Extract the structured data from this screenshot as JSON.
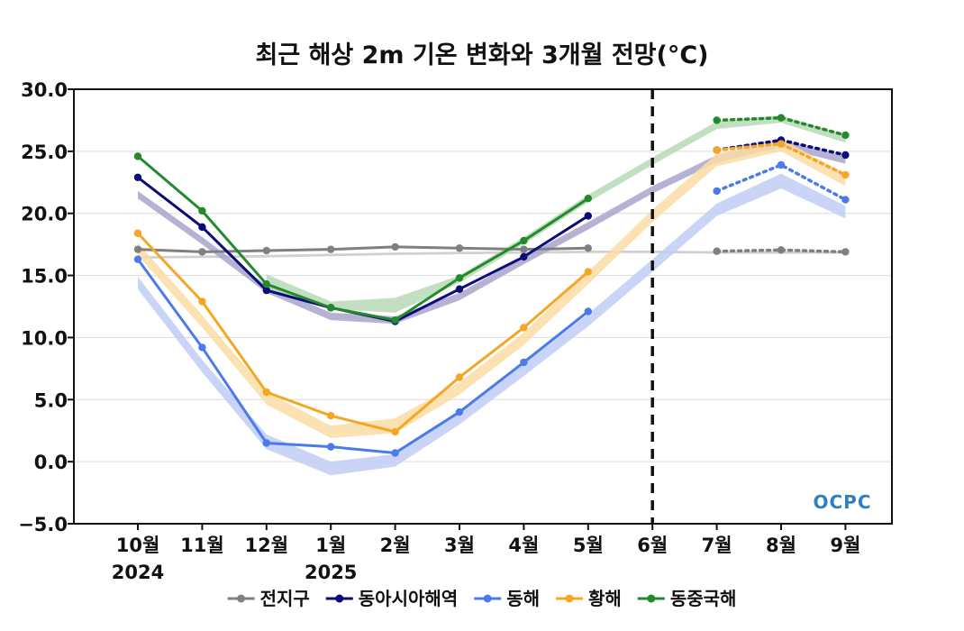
{
  "chart_data": {
    "type": "line",
    "title": "최근 해상 2m 기온 변화와 3개월 전망(°C)",
    "categories": [
      "10월",
      "11월",
      "12월",
      "1월",
      "2월",
      "3월",
      "4월",
      "5월",
      "6월",
      "7월",
      "8월",
      "9월"
    ],
    "year_labels": [
      {
        "index": 0,
        "text": "2024"
      },
      {
        "index": 3,
        "text": "2025"
      }
    ],
    "ylim": [
      -5,
      30
    ],
    "yticks": [
      "30.0",
      "25.0",
      "20.0",
      "15.0",
      "10.0",
      "5.0",
      "0.0",
      "−5.0"
    ],
    "ytick_values": [
      30,
      25,
      20,
      15,
      10,
      5,
      0,
      -5
    ],
    "grid": true,
    "legend_position": "bottom",
    "forecast_divider_index": 8,
    "logo_text": "OCPC",
    "series": [
      {
        "name": "전지구",
        "color": "#808080",
        "band_color": "#c8c8c8",
        "observed": [
          17.1,
          16.9,
          17.0,
          17.1,
          17.3,
          17.2,
          17.1,
          17.2
        ],
        "forecast_start": 9,
        "forecast": [
          16.95,
          17.05,
          16.9
        ],
        "band": {
          "start": 0,
          "lower": [
            16.35,
            16.4,
            16.45,
            16.55,
            16.65,
            16.7,
            16.75,
            16.8,
            16.8,
            16.75,
            16.75,
            16.75
          ],
          "upper": [
            16.55,
            16.6,
            16.65,
            16.75,
            16.85,
            16.9,
            16.95,
            17.0,
            17.0,
            16.95,
            16.95,
            16.95
          ]
        }
      },
      {
        "name": "동아시아해역",
        "color": "#0b0b7a",
        "band_color": "#a9a4cc",
        "observed": [
          22.9,
          18.9,
          13.8,
          12.4,
          11.3,
          13.9,
          16.5,
          19.8
        ],
        "forecast_start": 9,
        "forecast": [
          25.1,
          25.9,
          24.7
        ],
        "band": {
          "start": 0,
          "lower": [
            21.2,
            17.5,
            13.6,
            11.4,
            11.1,
            13.0,
            15.9,
            18.7,
            21.6,
            24.1,
            25.3,
            24.0
          ],
          "upper": [
            21.8,
            18.1,
            14.2,
            12.0,
            11.7,
            13.6,
            16.5,
            19.3,
            22.2,
            24.7,
            25.9,
            24.6
          ]
        }
      },
      {
        "name": "동해",
        "color": "#4b7bea",
        "band_color": "#c0cdf6",
        "observed": [
          16.3,
          9.2,
          1.5,
          1.2,
          0.7,
          4.0,
          8.0,
          12.1
        ],
        "forecast_start": 9,
        "forecast": [
          21.8,
          23.9,
          21.1
        ],
        "band": {
          "start": 0,
          "lower": [
            13.9,
            7.2,
            1.0,
            -1.1,
            -0.4,
            3.0,
            6.9,
            10.9,
            15.3,
            19.8,
            22.0,
            19.6
          ],
          "upper": [
            14.9,
            8.2,
            2.2,
            0.0,
            0.6,
            4.0,
            7.9,
            11.9,
            16.3,
            20.8,
            23.2,
            20.6
          ]
        }
      },
      {
        "name": "황해",
        "color": "#f5a623",
        "band_color": "#fcdca6",
        "observed": [
          18.4,
          12.9,
          5.6,
          3.7,
          2.4,
          6.8,
          10.8,
          15.3
        ],
        "forecast_start": 9,
        "forecast": [
          25.1,
          25.6,
          23.1
        ],
        "band": {
          "start": 0,
          "lower": [
            16.6,
            10.8,
            4.6,
            1.9,
            2.3,
            5.4,
            9.4,
            14.3,
            19.3,
            23.8,
            25.0,
            22.2
          ],
          "upper": [
            17.6,
            11.8,
            5.6,
            2.9,
            3.5,
            6.4,
            10.4,
            15.3,
            20.3,
            24.8,
            26.0,
            23.2
          ]
        }
      },
      {
        "name": "동중국해",
        "color": "#24892d",
        "band_color": "#b7dab6",
        "observed": [
          24.6,
          20.2,
          14.3,
          12.4,
          11.4,
          14.8,
          17.8,
          21.2
        ],
        "forecast_start": 9,
        "forecast": [
          27.5,
          27.7,
          26.3
        ],
        "band": {
          "start": 2,
          "lower": [
            13.7,
            12.3,
            12.0,
            14.4,
            17.5,
            20.9,
            23.9,
            26.8,
            27.3,
            25.7
          ],
          "upper": [
            15.1,
            12.9,
            13.2,
            15.0,
            18.1,
            21.5,
            24.5,
            27.4,
            27.9,
            26.3
          ]
        }
      }
    ]
  }
}
